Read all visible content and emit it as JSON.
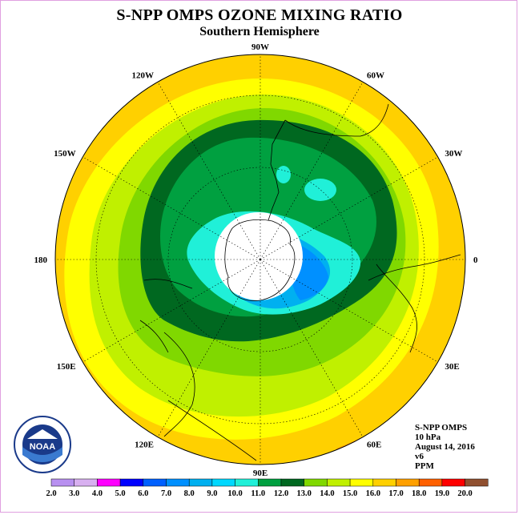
{
  "title": "S-NPP OMPS OZONE MIXING RATIO",
  "subtitle": "Southern Hemisphere",
  "longitude_labels": [
    {
      "text": "90W",
      "deg": 90
    },
    {
      "text": "60W",
      "deg": 60
    },
    {
      "text": "30W",
      "deg": 30
    },
    {
      "text": "0",
      "deg": 0
    },
    {
      "text": "30E",
      "deg": -30
    },
    {
      "text": "60E",
      "deg": -60
    },
    {
      "text": "90E",
      "deg": -90
    },
    {
      "text": "120E",
      "deg": -120
    },
    {
      "text": "150E",
      "deg": -150
    },
    {
      "text": "180",
      "deg": 180
    },
    {
      "text": "150W",
      "deg": 150
    },
    {
      "text": "120W",
      "deg": 120
    }
  ],
  "info": {
    "instrument": "S-NPP OMPS",
    "level": "10 hPa",
    "date": "August 14, 2016",
    "version": "v6",
    "units": "PPM"
  },
  "colorbar": {
    "labels": [
      "2.0",
      "3.0",
      "4.0",
      "5.0",
      "6.0",
      "7.0",
      "8.0",
      "9.0",
      "10.0",
      "11.0",
      "12.0",
      "13.0",
      "14.0",
      "15.0",
      "16.0",
      "17.0",
      "18.0",
      "19.0",
      "20.0"
    ],
    "colors": [
      "#b890f0",
      "#d8b0f0",
      "#ff00ff",
      "#0000ff",
      "#0060ff",
      "#0090ff",
      "#00b0f0",
      "#00d8ff",
      "#20f0d8",
      "#00a040",
      "#006820",
      "#80d800",
      "#c0f000",
      "#ffff00",
      "#ffd000",
      "#ffa000",
      "#ff6000",
      "#ff0000",
      "#905030"
    ]
  },
  "logo": {
    "text": "NOAA"
  }
}
